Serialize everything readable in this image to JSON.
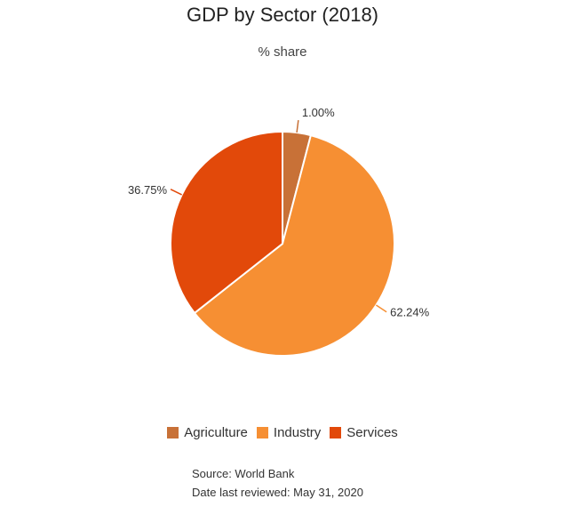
{
  "chart_data": {
    "type": "pie",
    "title": "GDP by Sector (2018)",
    "subtitle": "% share",
    "slices": [
      {
        "name": "Agriculture",
        "value": 1.0,
        "label": "1.00%",
        "color": "#c87137"
      },
      {
        "name": "Industry",
        "value": 62.24,
        "label": "62.24%",
        "color": "#f68f33"
      },
      {
        "name": "Services",
        "value": 36.75,
        "label": "36.75%",
        "color": "#e2490a"
      }
    ],
    "legend_position": "bottom",
    "notes": {
      "source": "Source: World Bank",
      "reviewed": "Date last reviewed: May 31, 2020"
    }
  }
}
